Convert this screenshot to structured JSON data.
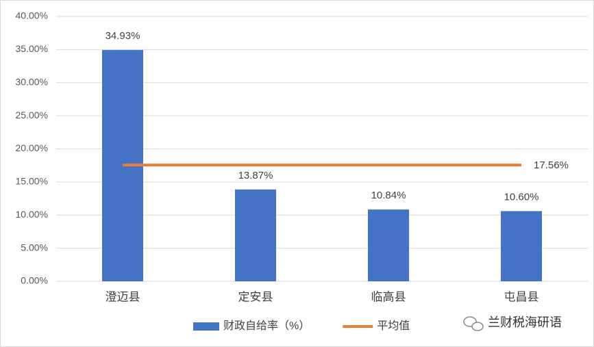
{
  "chart_data": {
    "type": "bar",
    "categories": [
      "澄迈县",
      "定安县",
      "临高县",
      "屯昌县"
    ],
    "series": [
      {
        "name": "财政自给率（%）",
        "type": "bar",
        "color": "#4472c4",
        "values": [
          34.93,
          13.87,
          10.84,
          10.6
        ],
        "value_labels": [
          "34.93%",
          "13.87%",
          "10.84%",
          "10.60%"
        ]
      },
      {
        "name": "平均值",
        "type": "line",
        "color": "#ed7d31",
        "values": [
          17.56,
          17.56,
          17.56,
          17.56
        ],
        "value_labels": [
          null,
          null,
          null,
          "17.56%"
        ]
      }
    ],
    "ylim": [
      0,
      40
    ],
    "yticks": [
      {
        "value": 0,
        "label": "0.00%"
      },
      {
        "value": 5,
        "label": "5.00%"
      },
      {
        "value": 10,
        "label": "10.00%"
      },
      {
        "value": 15,
        "label": "15.00%"
      },
      {
        "value": 20,
        "label": "20.00%"
      },
      {
        "value": 25,
        "label": "25.00%"
      },
      {
        "value": 30,
        "label": "30.00%"
      },
      {
        "value": 35,
        "label": "35.00%"
      },
      {
        "value": 40,
        "label": "40.00%"
      }
    ],
    "grid": true,
    "legend": "bottom"
  },
  "watermark": "兰财税海研语"
}
